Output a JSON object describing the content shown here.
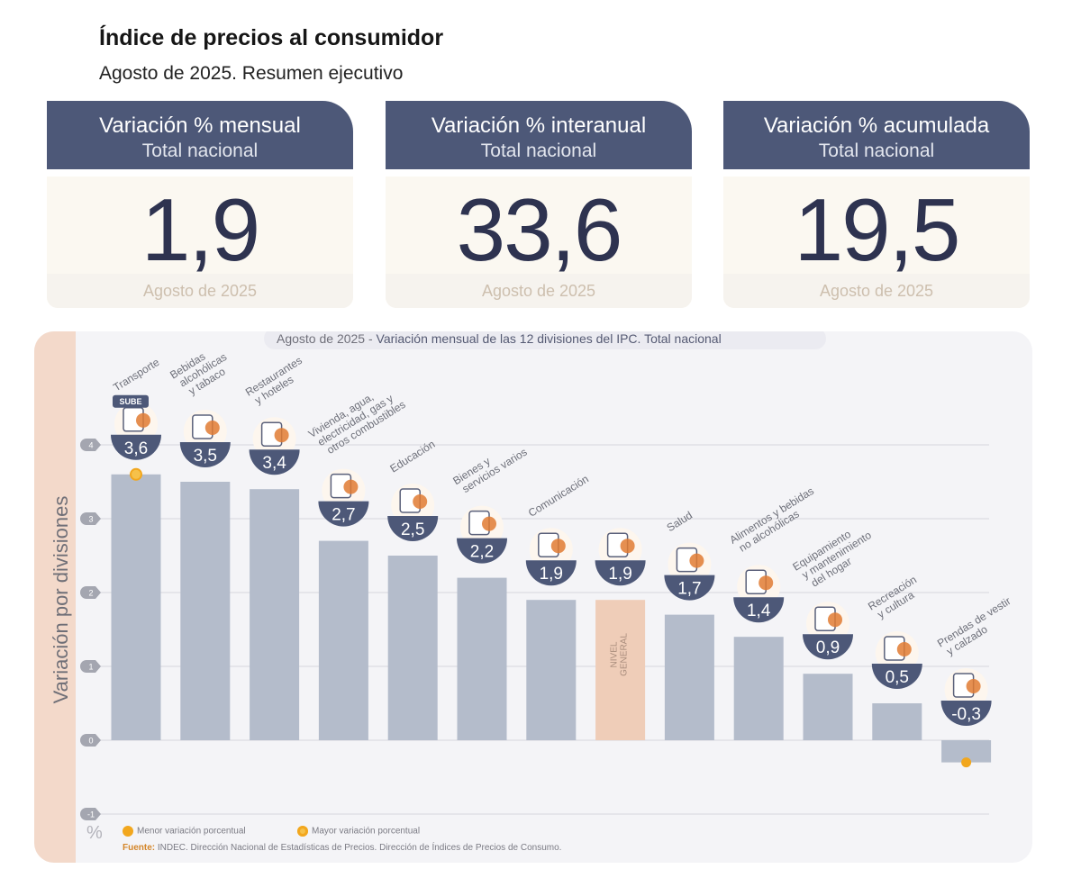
{
  "header": {
    "title": "Índice de precios al consumidor",
    "subtitle": "Agosto de 2025. Resumen ejecutivo"
  },
  "cards": [
    {
      "title": "Variación % mensual",
      "scope": "Total nacional",
      "value": "1,9",
      "period": "Agosto de 2025"
    },
    {
      "title": "Variación % interanual",
      "scope": "Total nacional",
      "value": "33,6",
      "period": "Agosto de 2025"
    },
    {
      "title": "Variación % acumulada",
      "scope": "Total nacional",
      "value": "19,5",
      "period": "Agosto de 2025"
    }
  ],
  "colors": {
    "navy": "#4d5878",
    "bar": "#b4bccb",
    "general_bar": "#efcdb8",
    "accent_orange": "#f2a71e",
    "icon_orange": "#e07b32"
  },
  "chart_data": {
    "type": "bar",
    "title_prefix": "Agosto de 2025 - ",
    "title": "Variación mensual de las 12 divisiones del IPC. Total nacional",
    "ylabel": "Variación por divisiones",
    "yunit": "%",
    "ylim": [
      -1,
      4
    ],
    "yticks": [
      -1,
      0,
      1,
      2,
      3,
      4
    ],
    "grid": true,
    "categories": [
      "Transporte",
      "Bebidas alcohólicas y tabaco",
      "Restaurantes y hoteles",
      "Vivienda, agua, electricidad, gas y otros combustibles",
      "Educación",
      "Bienes y servicios varios",
      "Comunicación",
      "Nivel general",
      "Salud",
      "Alimentos y bebidas no alcohólicas",
      "Equipamiento y mantenimiento del hogar",
      "Recreación y cultura",
      "Prendas de vestir y calzado"
    ],
    "category_label_lines": [
      [
        "Transporte"
      ],
      [
        "Bebidas",
        "alcohólicas",
        "y tabaco"
      ],
      [
        "Restaurantes",
        "y hoteles"
      ],
      [
        "Vivienda, agua,",
        "electricidad, gas y",
        "otros combustibles"
      ],
      [
        "Educación"
      ],
      [
        "Bienes y",
        "servicios varios"
      ],
      [
        "Comunicación"
      ],
      [],
      [
        "Salud"
      ],
      [
        "Alimentos y bebidas",
        "no alcohólicas"
      ],
      [
        "Equipamiento",
        "y mantenimiento",
        "del hogar"
      ],
      [
        "Recreación",
        "y cultura"
      ],
      [
        "Prendas de vestir",
        "y calzado"
      ]
    ],
    "values": [
      3.6,
      3.5,
      3.4,
      2.7,
      2.5,
      2.2,
      1.9,
      1.9,
      1.7,
      1.4,
      0.9,
      0.5,
      -0.3
    ],
    "value_labels": [
      "3,6",
      "3,5",
      "3,4",
      "2,7",
      "2,5",
      "2,2",
      "1,9",
      "1,9",
      "1,7",
      "1,4",
      "0,9",
      "0,5",
      "-0,3"
    ],
    "icons": [
      "bus-icon",
      "wine-bottle-icon",
      "plate-cutlery-icon",
      "lightbulb-key-icon",
      "notebook-pencil-icon",
      "comb-scissors-icon",
      "smartphone-icon",
      "shopping-basket-icon",
      "first-aid-icon",
      "chicken-food-icon",
      "washing-machine-icon",
      "umbrella-sun-icon",
      "tshirt-sandal-icon"
    ],
    "icon_badge": "SUBE",
    "general_index": 7,
    "general_label": [
      "NIVEL",
      "GENERAL"
    ],
    "highest_index": 0,
    "lowest_index": 12,
    "legend": [
      {
        "label": "Menor variación porcentual",
        "marker": "dot"
      },
      {
        "label": "Mayor variación porcentual",
        "marker": "ring-dot"
      }
    ],
    "source_label": "Fuente:",
    "source": "INDEC. Dirección Nacional de Estadísticas de Precios. Dirección de Índices de Precios de Consumo."
  }
}
